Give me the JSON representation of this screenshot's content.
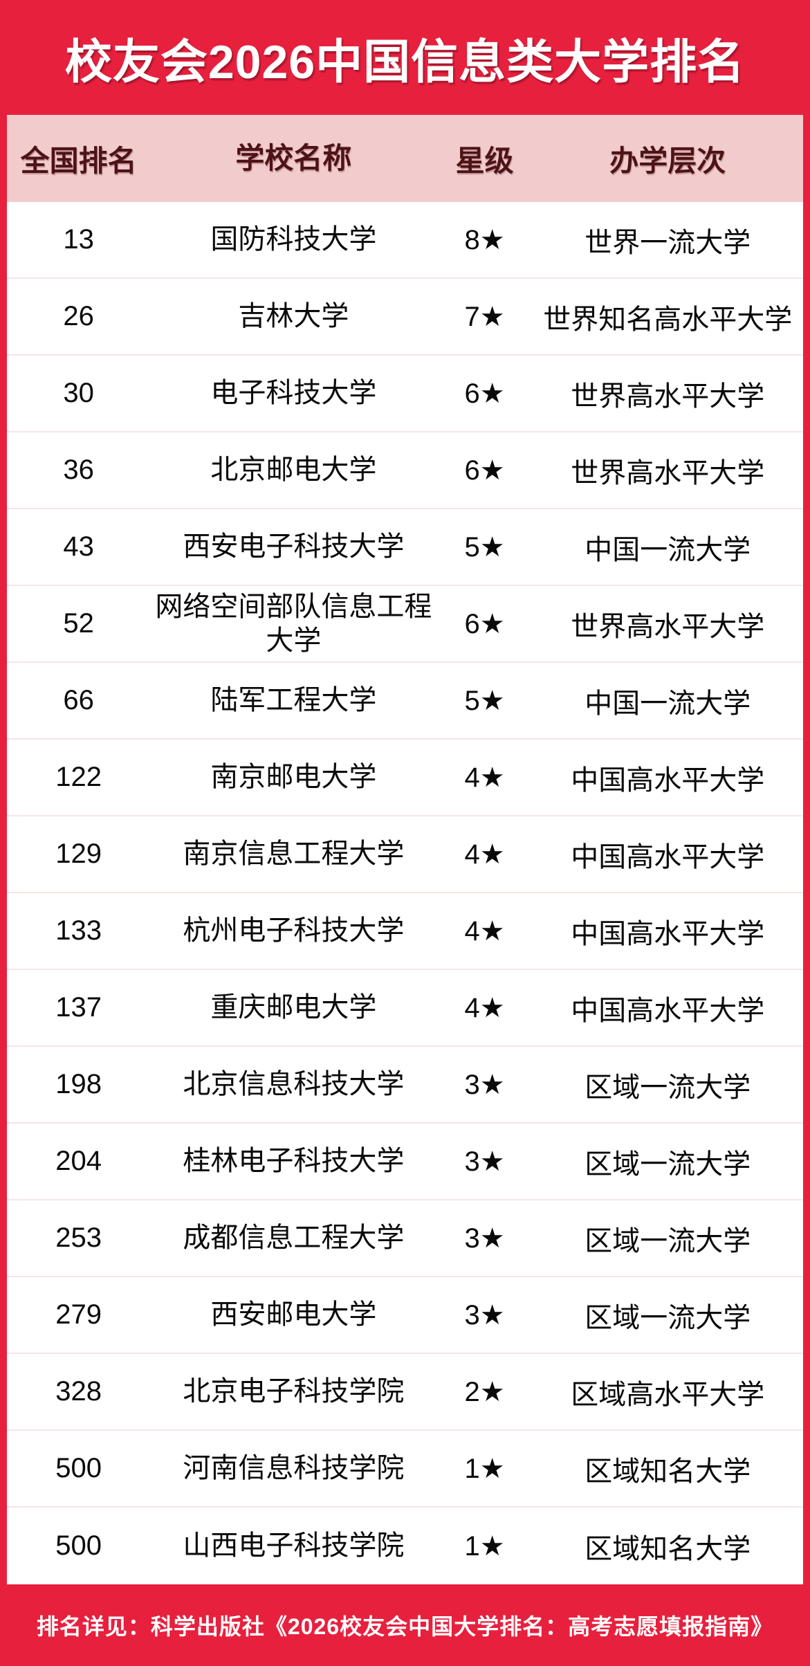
{
  "title": "校友会2026中国信息类大学排名",
  "table": {
    "columns": [
      "全国排名",
      "学校名称",
      "星级",
      "办学层次"
    ],
    "rows": [
      {
        "rank": "13",
        "school": "国防科技大学",
        "stars": "8★",
        "level": "世界一流大学"
      },
      {
        "rank": "26",
        "school": "吉林大学",
        "stars": "7★",
        "level": "世界知名高水平大学"
      },
      {
        "rank": "30",
        "school": "电子科技大学",
        "stars": "6★",
        "level": "世界高水平大学"
      },
      {
        "rank": "36",
        "school": "北京邮电大学",
        "stars": "6★",
        "level": "世界高水平大学"
      },
      {
        "rank": "43",
        "school": "西安电子科技大学",
        "stars": "5★",
        "level": "中国一流大学"
      },
      {
        "rank": "52",
        "school": "网络空间部队信息工程\n大学",
        "stars": "6★",
        "level": "世界高水平大学"
      },
      {
        "rank": "66",
        "school": "陆军工程大学",
        "stars": "5★",
        "level": "中国一流大学"
      },
      {
        "rank": "122",
        "school": "南京邮电大学",
        "stars": "4★",
        "level": "中国高水平大学"
      },
      {
        "rank": "129",
        "school": "南京信息工程大学",
        "stars": "4★",
        "level": "中国高水平大学"
      },
      {
        "rank": "133",
        "school": "杭州电子科技大学",
        "stars": "4★",
        "level": "中国高水平大学"
      },
      {
        "rank": "137",
        "school": "重庆邮电大学",
        "stars": "4★",
        "level": "中国高水平大学"
      },
      {
        "rank": "198",
        "school": "北京信息科技大学",
        "stars": "3★",
        "level": "区域一流大学"
      },
      {
        "rank": "204",
        "school": "桂林电子科技大学",
        "stars": "3★",
        "level": "区域一流大学"
      },
      {
        "rank": "253",
        "school": "成都信息工程大学",
        "stars": "3★",
        "level": "区域一流大学"
      },
      {
        "rank": "279",
        "school": "西安邮电大学",
        "stars": "3★",
        "level": "区域一流大学"
      },
      {
        "rank": "328",
        "school": "北京电子科技学院",
        "stars": "2★",
        "level": "区域高水平大学"
      },
      {
        "rank": "500",
        "school": "河南信息科技学院",
        "stars": "1★",
        "level": "区域知名大学"
      },
      {
        "rank": "500",
        "school": "山西电子科技学院",
        "stars": "1★",
        "level": "区域知名大学"
      }
    ]
  },
  "footer": {
    "note": "排名详见：科学出版社《2026校友会中国大学排名：高考志愿填报指南》"
  },
  "colors": {
    "background_red": "#E7203E",
    "header_pink": "#F2CBCC",
    "header_text_maroon": "#4D1316",
    "row_divider_pink": "#F8E5E6",
    "body_text": "#0A0A0A",
    "title_white": "#FFFFFF"
  }
}
